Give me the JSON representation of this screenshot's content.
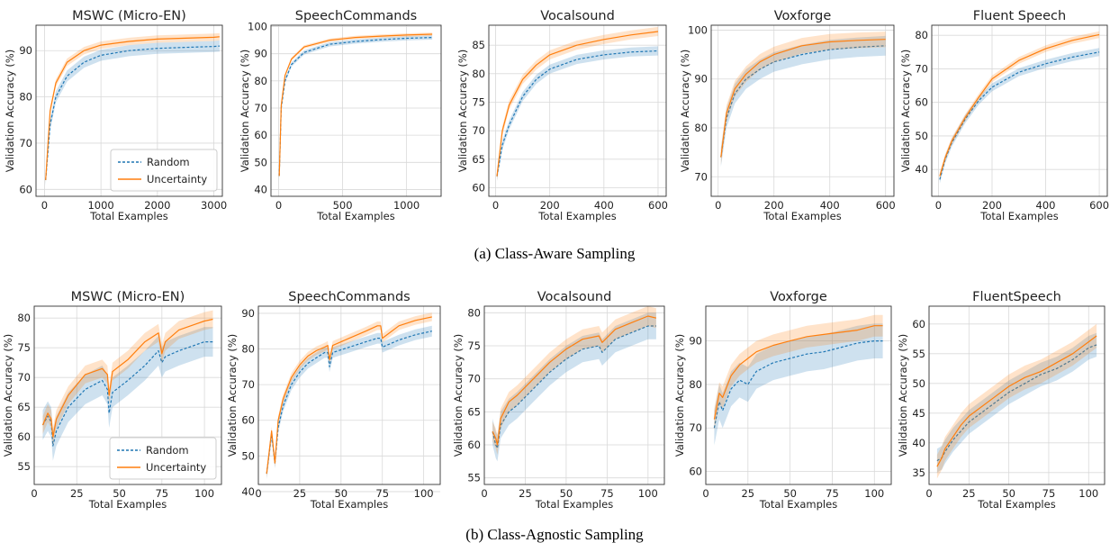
{
  "colors": {
    "random": "#1f77b4",
    "uncertainty": "#ff7f0e",
    "grid": "#d9d9d9"
  },
  "captions": {
    "a": "(a) Class-Aware Sampling",
    "b": "(b) Class-Agnostic Sampling"
  },
  "chart_data": [
    {
      "type": "line",
      "title": "MSWC (Micro-EN)",
      "xlabel": "Total Examples",
      "ylabel": "Validation Accuracy (%)",
      "xlim": [
        -150,
        3150
      ],
      "ylim": [
        58.5,
        95.5
      ],
      "xticks": [
        0,
        1000,
        2000,
        3000
      ],
      "yticks": [
        60,
        70,
        80,
        90
      ],
      "legend": "lower-right",
      "grid": true,
      "series": [
        {
          "name": "Random",
          "style": "dashed",
          "x": [
            20,
            100,
            200,
            400,
            700,
            1000,
            1500,
            2000,
            2500,
            3000,
            3100
          ],
          "values": [
            62,
            74,
            80,
            84.5,
            87.5,
            89,
            90,
            90.5,
            90.7,
            90.9,
            91
          ],
          "band": 1.2
        },
        {
          "name": "Uncertainty",
          "style": "solid",
          "x": [
            20,
            100,
            200,
            400,
            700,
            1000,
            1500,
            2000,
            2500,
            3000,
            3100
          ],
          "values": [
            62,
            77,
            83,
            87.5,
            90,
            91.2,
            92,
            92.5,
            92.7,
            92.9,
            93
          ],
          "band": 0.8
        }
      ]
    },
    {
      "type": "line",
      "title": "SpeechCommands",
      "xlabel": "Total Examples",
      "ylabel": "Validation Accuracy (%)",
      "xlim": [
        -60,
        1270
      ],
      "ylim": [
        37.5,
        100.5
      ],
      "xticks": [
        0,
        500,
        1000
      ],
      "yticks": [
        40,
        50,
        60,
        70,
        80,
        90,
        100
      ],
      "legend": "none",
      "grid": true,
      "series": [
        {
          "name": "Random",
          "style": "dashed",
          "x": [
            5,
            20,
            50,
            100,
            200,
            400,
            600,
            800,
            1000,
            1200
          ],
          "values": [
            45,
            70,
            80,
            86,
            90.5,
            93.5,
            94.5,
            95.2,
            95.7,
            96
          ],
          "band": 0.8
        },
        {
          "name": "Uncertainty",
          "style": "solid",
          "x": [
            5,
            20,
            50,
            100,
            200,
            400,
            600,
            800,
            1000,
            1200
          ],
          "values": [
            45,
            71,
            82,
            88,
            92.5,
            95,
            96,
            96.5,
            96.9,
            97.2
          ],
          "band": 0.6
        }
      ]
    },
    {
      "type": "line",
      "title": "Vocalsound",
      "xlabel": "Total Examples",
      "ylabel": "Validation Accuracy (%)",
      "xlim": [
        -25,
        630
      ],
      "ylim": [
        58.5,
        88.5
      ],
      "xticks": [
        0,
        200,
        400,
        600
      ],
      "yticks": [
        60,
        65,
        70,
        75,
        80,
        85
      ],
      "legend": "none",
      "grid": true,
      "series": [
        {
          "name": "Random",
          "style": "dashed",
          "x": [
            5,
            25,
            50,
            100,
            150,
            200,
            300,
            400,
            500,
            600
          ],
          "values": [
            62,
            67.5,
            71,
            76,
            79,
            80.8,
            82.5,
            83.3,
            83.8,
            84
          ],
          "band": 0.8
        },
        {
          "name": "Uncertainty",
          "style": "solid",
          "x": [
            5,
            25,
            50,
            100,
            150,
            200,
            300,
            400,
            500,
            600
          ],
          "values": [
            62,
            70,
            74.5,
            79,
            81.5,
            83.3,
            85,
            86,
            86.8,
            87.4
          ],
          "band": 0.8
        }
      ]
    },
    {
      "type": "line",
      "title": "Voxforge",
      "xlabel": "Total Examples",
      "ylabel": "Validation Accuracy (%)",
      "xlim": [
        -25,
        630
      ],
      "ylim": [
        66,
        101
      ],
      "xticks": [
        0,
        200,
        400,
        600
      ],
      "yticks": [
        70,
        80,
        90,
        100
      ],
      "legend": "none",
      "grid": true,
      "series": [
        {
          "name": "Random",
          "style": "dashed",
          "x": [
            10,
            30,
            60,
            100,
            150,
            200,
            300,
            400,
            500,
            600
          ],
          "values": [
            74,
            82,
            87,
            90,
            92,
            93.5,
            95,
            96,
            96.5,
            96.8
          ],
          "band": 2.0
        },
        {
          "name": "Uncertainty",
          "style": "solid",
          "x": [
            10,
            30,
            60,
            100,
            150,
            200,
            300,
            400,
            500,
            600
          ],
          "values": [
            74,
            83,
            88,
            91,
            93.5,
            95,
            96.8,
            97.6,
            97.9,
            98.1
          ],
          "band": 1.6
        }
      ]
    },
    {
      "type": "line",
      "title": "Fluent Speech",
      "xlabel": "Total Examples",
      "ylabel": "Validation Accuracy (%)",
      "xlim": [
        -25,
        630
      ],
      "ylim": [
        32,
        83
      ],
      "xticks": [
        0,
        200,
        400,
        600
      ],
      "yticks": [
        40,
        50,
        60,
        70,
        80
      ],
      "legend": "none",
      "grid": true,
      "series": [
        {
          "name": "Random",
          "style": "dashed",
          "x": [
            5,
            25,
            50,
            100,
            150,
            200,
            300,
            400,
            500,
            600
          ],
          "values": [
            37,
            43,
            48,
            55,
            60.5,
            64.5,
            69,
            71.5,
            73.5,
            75
          ],
          "band": 1.2
        },
        {
          "name": "Uncertainty",
          "style": "solid",
          "x": [
            5,
            25,
            50,
            100,
            150,
            200,
            300,
            400,
            500,
            600
          ],
          "values": [
            38,
            43.5,
            48.5,
            55.5,
            61.5,
            67,
            72.5,
            76,
            78.5,
            80.2
          ],
          "band": 1.0
        }
      ]
    },
    {
      "type": "line",
      "title": "MSWC (Micro-EN)",
      "xlabel": "Total Examples",
      "ylabel": "Validation Accuracy (%)",
      "xlim": [
        0,
        110
      ],
      "ylim": [
        52,
        82
      ],
      "xticks": [
        0,
        25,
        50,
        75,
        100
      ],
      "yticks": [
        55,
        60,
        65,
        70,
        75,
        80
      ],
      "legend": "lower-right",
      "grid": true,
      "series": [
        {
          "name": "Random",
          "style": "dashed",
          "x": [
            5,
            8,
            10,
            11,
            13,
            20,
            30,
            40,
            43,
            44,
            46,
            55,
            65,
            73,
            75,
            77,
            85,
            95,
            100,
            105
          ],
          "values": [
            62,
            63.5,
            62.5,
            58.5,
            61,
            65,
            68,
            69.5,
            68,
            64,
            67.5,
            69.5,
            72,
            74.5,
            72.5,
            73.5,
            74.5,
            75.5,
            76,
            76
          ],
          "band": 2.5
        },
        {
          "name": "Uncertainty",
          "style": "solid",
          "x": [
            5,
            8,
            10,
            11,
            13,
            20,
            30,
            40,
            43,
            44,
            46,
            55,
            65,
            73,
            75,
            77,
            85,
            95,
            100,
            105
          ],
          "values": [
            62,
            64,
            63,
            60,
            63,
            67,
            70.5,
            71.5,
            70.5,
            67,
            71,
            73,
            76,
            77.5,
            74,
            76,
            78,
            79,
            79.5,
            79.8
          ],
          "band": 1.5
        }
      ]
    },
    {
      "type": "line",
      "title": "SpeechCommands",
      "xlabel": "Total Examples",
      "ylabel": "Validation Accuracy (%)",
      "xlim": [
        0,
        110
      ],
      "ylim": [
        42,
        92
      ],
      "xticks": [
        0,
        25,
        50,
        75,
        100
      ],
      "yticks": [
        40,
        50,
        60,
        70,
        80,
        90
      ],
      "legend": "none",
      "grid": true,
      "series": [
        {
          "name": "Random",
          "style": "dashed",
          "x": [
            5,
            8,
            10,
            12,
            15,
            20,
            25,
            30,
            35,
            40,
            42,
            43,
            45,
            55,
            65,
            72,
            74,
            75,
            85,
            95,
            105
          ],
          "values": [
            45,
            56,
            48,
            58,
            64,
            70,
            73.5,
            76,
            77.5,
            79,
            79,
            75,
            79,
            80.5,
            82,
            83,
            83,
            80.5,
            82.5,
            84,
            85
          ],
          "band": 1.5
        },
        {
          "name": "Uncertainty",
          "style": "solid",
          "x": [
            5,
            8,
            10,
            12,
            15,
            20,
            25,
            30,
            35,
            40,
            42,
            43,
            45,
            55,
            65,
            72,
            74,
            75,
            85,
            95,
            105
          ],
          "values": [
            45,
            57,
            48,
            60,
            66,
            72,
            75.5,
            78,
            79.5,
            80.5,
            81,
            77,
            81,
            83,
            85,
            86.5,
            86.5,
            83,
            86.5,
            88,
            89
          ],
          "band": 1.2
        }
      ]
    },
    {
      "type": "line",
      "title": "Vocalsound",
      "xlabel": "Total Examples",
      "ylabel": "Validation Accuracy (%)",
      "xlim": [
        0,
        110
      ],
      "ylim": [
        54,
        81
      ],
      "xticks": [
        0,
        25,
        50,
        75,
        100
      ],
      "yticks": [
        55,
        60,
        65,
        70,
        75,
        80
      ],
      "legend": "none",
      "grid": true,
      "series": [
        {
          "name": "Random",
          "style": "dashed",
          "x": [
            5,
            7,
            8,
            10,
            15,
            20,
            30,
            40,
            50,
            60,
            70,
            72,
            80,
            90,
            100,
            105
          ],
          "values": [
            62,
            60,
            59.5,
            63,
            65,
            66,
            68.5,
            71,
            73,
            74.5,
            75,
            74,
            76,
            77,
            78,
            78
          ],
          "band": 2.0
        },
        {
          "name": "Uncertainty",
          "style": "solid",
          "x": [
            5,
            7,
            8,
            10,
            15,
            20,
            30,
            40,
            50,
            60,
            70,
            72,
            80,
            90,
            100,
            105
          ],
          "values": [
            62,
            61,
            60,
            64,
            66.5,
            67.5,
            70,
            72.5,
            74.5,
            76,
            76.5,
            75.5,
            77.5,
            78.5,
            79.5,
            79.2
          ],
          "band": 1.5
        }
      ]
    },
    {
      "type": "line",
      "title": "Voxforge",
      "xlabel": "Total Examples",
      "ylabel": "Validation Accuracy (%)",
      "xlim": [
        0,
        110
      ],
      "ylim": [
        57,
        98
      ],
      "xticks": [
        0,
        25,
        50,
        75,
        100
      ],
      "yticks": [
        60,
        70,
        80,
        90
      ],
      "legend": "none",
      "grid": true,
      "series": [
        {
          "name": "Random",
          "style": "dashed",
          "x": [
            5,
            8,
            10,
            15,
            20,
            25,
            30,
            40,
            50,
            60,
            70,
            80,
            90,
            100,
            105
          ],
          "values": [
            70,
            76,
            74,
            79,
            81,
            80,
            83,
            85,
            86,
            87,
            87.5,
            88.5,
            89.5,
            90,
            90
          ],
          "band": 4.0
        },
        {
          "name": "Uncertainty",
          "style": "solid",
          "x": [
            5,
            8,
            10,
            15,
            20,
            25,
            30,
            40,
            50,
            60,
            70,
            80,
            90,
            100,
            105
          ],
          "values": [
            72,
            78,
            77,
            82,
            84.5,
            86,
            87.5,
            89,
            90,
            91,
            91.5,
            92,
            92.5,
            93.5,
            93.5
          ],
          "band": 2.5
        }
      ]
    },
    {
      "type": "line",
      "title": "FluentSpeech",
      "xlabel": "Total Examples",
      "ylabel": "Validation Accuracy (%)",
      "xlim": [
        0,
        110
      ],
      "ylim": [
        33,
        63
      ],
      "xticks": [
        0,
        25,
        50,
        75,
        100
      ],
      "yticks": [
        35,
        40,
        45,
        50,
        55,
        60
      ],
      "legend": "none",
      "grid": true,
      "series": [
        {
          "name": "Random",
          "style": "dashed",
          "x": [
            5,
            8,
            10,
            15,
            20,
            25,
            30,
            40,
            50,
            60,
            70,
            80,
            90,
            100,
            105
          ],
          "values": [
            37,
            37.5,
            38.5,
            40.5,
            42,
            43.5,
            44.5,
            46.5,
            48.5,
            50,
            51.5,
            52.5,
            54,
            56,
            56.5
          ],
          "band": 2.0
        },
        {
          "name": "Uncertainty",
          "style": "solid",
          "x": [
            5,
            8,
            10,
            15,
            20,
            25,
            30,
            40,
            50,
            60,
            70,
            80,
            90,
            100,
            105
          ],
          "values": [
            36,
            37.5,
            39,
            41,
            43,
            44.5,
            45.5,
            47.5,
            49.5,
            51,
            52,
            53.5,
            55,
            57,
            58
          ],
          "band": 2.0
        }
      ]
    }
  ]
}
